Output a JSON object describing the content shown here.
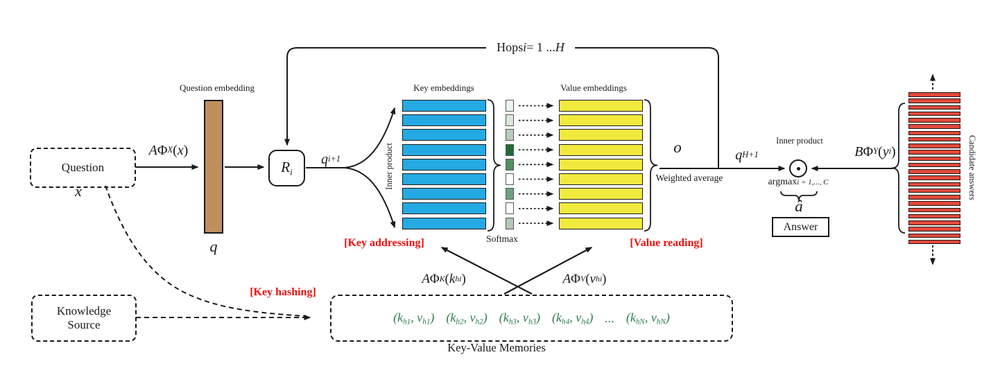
{
  "colors": {
    "stroke": "#1a1a1a",
    "key_bar": "#25a9e2",
    "value_bar": "#f2e93f",
    "question_bar": "#bf8e5d",
    "candidate_bar": "#e2493b",
    "red_label": "#ed1111",
    "green_text": "#2b7b4d",
    "softmax_cell_border": "#555555"
  },
  "labels": {
    "question": "Question",
    "question_embedding": "Question embedding",
    "key_embeddings": "Key embeddings",
    "value_embeddings": "Value embeddings",
    "inner_product_rotated": "Inner product",
    "softmax": "Softmax",
    "key_addressing": "[Key addressing]",
    "value_reading": "[Value reading]",
    "key_hashing": "[Key hashing]",
    "weighted_average": "Weighted average",
    "inner_product": "Inner product",
    "answer": "Answer",
    "candidate_answers": "Candidate answers",
    "knowledge_line1": "Knowledge",
    "knowledge_line2": "Source",
    "key_value_memories": "Key-Value Memories"
  },
  "math": {
    "x_var": [
      {
        "i": "x"
      }
    ],
    "q_var": [
      {
        "i": "q"
      }
    ],
    "aphix": [
      {
        "i": "A"
      },
      {
        "t": "Φ"
      },
      {
        "s": "X"
      },
      {
        "t": "("
      },
      {
        "i": "x"
      },
      {
        "t": ")"
      }
    ],
    "ri": [
      {
        "i": "R"
      },
      {
        "s": "i"
      }
    ],
    "qi1": [
      {
        "i": "q"
      },
      {
        "s": "i+1"
      }
    ],
    "hops": [
      {
        "t": "Hops "
      },
      {
        "i": "i"
      },
      {
        "t": " = 1 ... "
      },
      {
        "i": "H"
      }
    ],
    "o_var": [
      {
        "i": "o"
      }
    ],
    "qh1": [
      {
        "i": "q"
      },
      {
        "s": "H+1"
      }
    ],
    "bphiy": [
      {
        "i": "B"
      },
      {
        "t": "Φ"
      },
      {
        "s": "Y"
      },
      {
        "t": "("
      },
      {
        "i": "y"
      },
      {
        "s": "i"
      },
      {
        "t": ")"
      }
    ],
    "argmax": [
      {
        "t": "argmax"
      },
      {
        "s": "i = 1,..., C"
      }
    ],
    "a_hat": [
      {
        "i": "â"
      }
    ],
    "aphik": [
      {
        "i": "A"
      },
      {
        "t": "Φ"
      },
      {
        "s": "K"
      },
      {
        "t": "("
      },
      {
        "i": "k"
      },
      {
        "s": "hi"
      },
      {
        "t": ")"
      }
    ],
    "aphiv": [
      {
        "i": "A"
      },
      {
        "t": "Φ"
      },
      {
        "s": "V"
      },
      {
        "t": "("
      },
      {
        "i": "v"
      },
      {
        "s": "hi"
      },
      {
        "t": ")"
      }
    ]
  },
  "memory_stacks": {
    "rows": 9,
    "softmax_cell_colors": [
      "#edf5ee",
      "#d9e8da",
      "#b7cdb9",
      "#1e6c38",
      "#4f9162",
      "#ffffff",
      "#6ba37d",
      "#ffffff",
      "#b2cab6"
    ]
  },
  "candidates": {
    "bars": 24
  },
  "memories": {
    "tuples": [
      [
        {
          "t": "("
        },
        {
          "i": "k"
        },
        {
          "s": "h1"
        },
        {
          "t": ", "
        },
        {
          "i": "v"
        },
        {
          "s": "h1"
        },
        {
          "t": ")"
        }
      ],
      [
        {
          "t": "("
        },
        {
          "i": "k"
        },
        {
          "s": "h2"
        },
        {
          "t": ", "
        },
        {
          "i": "v"
        },
        {
          "s": "h2"
        },
        {
          "t": ")"
        }
      ],
      [
        {
          "t": "("
        },
        {
          "i": "k"
        },
        {
          "s": "h3"
        },
        {
          "t": ", "
        },
        {
          "i": "v"
        },
        {
          "s": "h3"
        },
        {
          "t": ")"
        }
      ],
      [
        {
          "t": "("
        },
        {
          "i": "k"
        },
        {
          "s": "h4"
        },
        {
          "t": ", "
        },
        {
          "i": "v"
        },
        {
          "s": "h4"
        },
        {
          "t": ")"
        }
      ],
      [
        {
          "t": "..."
        }
      ],
      [
        {
          "t": "("
        },
        {
          "i": "k"
        },
        {
          "s": "hN"
        },
        {
          "t": ", "
        },
        {
          "i": "v"
        },
        {
          "s": "hN"
        },
        {
          "t": ")"
        }
      ]
    ]
  }
}
